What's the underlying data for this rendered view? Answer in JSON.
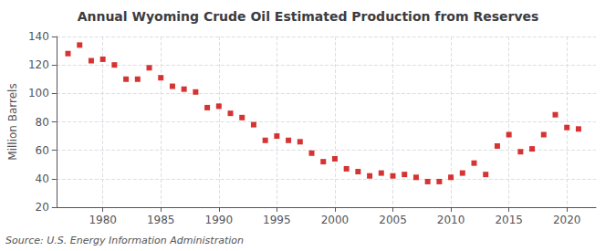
{
  "chart_data": {
    "type": "scatter",
    "title": "Annual Wyoming Crude Oil Estimated Production from Reserves",
    "ylabel": "Million Barrels",
    "annotation": "Source: U.S. Energy Information Administration",
    "x": [
      1977,
      1978,
      1979,
      1980,
      1981,
      1982,
      1983,
      1984,
      1985,
      1986,
      1987,
      1988,
      1989,
      1990,
      1991,
      1992,
      1993,
      1994,
      1995,
      1996,
      1997,
      1998,
      1999,
      2000,
      2001,
      2002,
      2003,
      2004,
      2005,
      2006,
      2007,
      2008,
      2009,
      2010,
      2011,
      2012,
      2013,
      2014,
      2015,
      2016,
      2017,
      2018,
      2019,
      2020,
      2021
    ],
    "values": [
      128,
      134,
      123,
      124,
      120,
      110,
      110,
      118,
      111,
      105,
      103,
      101,
      90,
      91,
      86,
      83,
      78,
      67,
      70,
      67,
      66,
      58,
      52,
      54,
      47,
      45,
      42,
      44,
      42,
      43,
      41,
      38,
      38,
      41,
      44,
      51,
      43,
      63,
      71,
      59,
      61,
      71,
      85,
      76,
      75
    ],
    "color": "#cc0000",
    "marker": "square",
    "xlim": [
      1976,
      2022.5
    ],
    "xticks": [
      1980,
      1985,
      1990,
      1995,
      2000,
      2005,
      2010,
      2015,
      2020
    ],
    "ylim": [
      20,
      140
    ],
    "yticks": [
      20,
      40,
      60,
      80,
      100,
      120,
      140
    ],
    "grid": true
  }
}
